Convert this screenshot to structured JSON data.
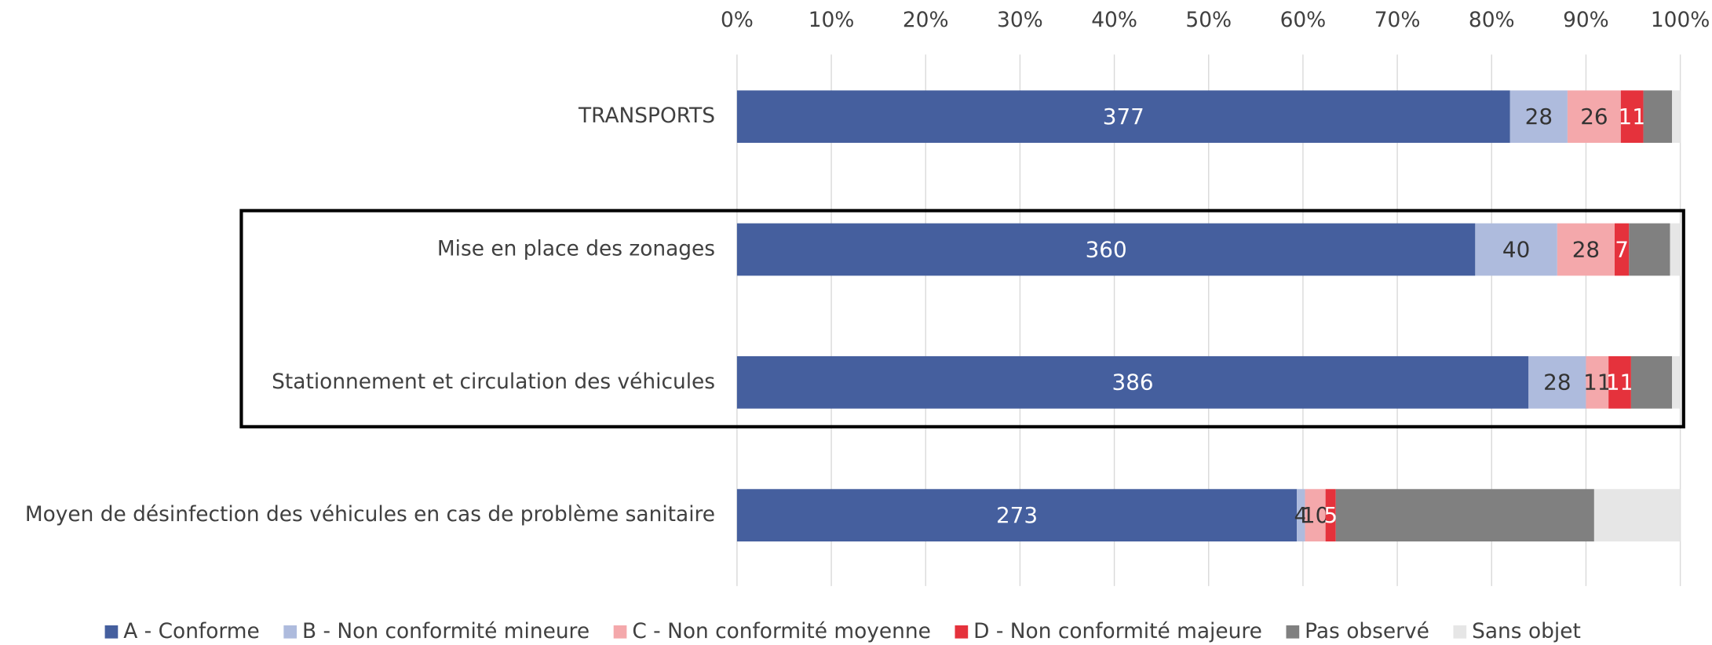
{
  "chart_data": {
    "type": "bar",
    "orientation": "horizontal",
    "stacking": "percent",
    "categories": [
      "TRANSPORTS",
      "Mise en place des zonages",
      "Stationnement et circulation des véhicules",
      "Moyen de désinfection des véhicules en cas de problème sanitaire"
    ],
    "series": [
      {
        "name": "A - Conforme",
        "color": "#455f9e",
        "label_color": "#ffffff",
        "show_labels": true,
        "values": [
          377,
          360,
          386,
          273
        ]
      },
      {
        "name": "B - Non conformité mineure",
        "color": "#aebbdd",
        "label_color": "#333333",
        "show_labels": true,
        "values": [
          28,
          40,
          28,
          4
        ]
      },
      {
        "name": "C - Non conformité moyenne",
        "color": "#f4a8ab",
        "label_color": "#333333",
        "show_labels": true,
        "values": [
          26,
          28,
          11,
          10
        ]
      },
      {
        "name": "D - Non conformité majeure",
        "color": "#e5323c",
        "label_color": "#ffffff",
        "show_labels": true,
        "values": [
          11,
          7,
          11,
          5
        ]
      },
      {
        "name": "Pas observé",
        "color": "#808080",
        "label_color": "#ffffff",
        "show_labels": false,
        "values": [
          14,
          20,
          20,
          126
        ]
      },
      {
        "name": "Sans objet",
        "color": "#e6e6e6",
        "label_color": "#333333",
        "show_labels": false,
        "values": [
          4,
          5,
          4,
          42
        ]
      }
    ],
    "xlim": [
      0,
      100
    ],
    "xticks": [
      {
        "value": 0,
        "label": "0%"
      },
      {
        "value": 10,
        "label": "10%"
      },
      {
        "value": 20,
        "label": "20%"
      },
      {
        "value": 30,
        "label": "30%"
      },
      {
        "value": 40,
        "label": "40%"
      },
      {
        "value": 50,
        "label": "50%"
      },
      {
        "value": 60,
        "label": "60%"
      },
      {
        "value": 70,
        "label": "70%"
      },
      {
        "value": 80,
        "label": "80%"
      },
      {
        "value": 90,
        "label": "90%"
      },
      {
        "value": 100,
        "label": "100%"
      }
    ],
    "grid": true,
    "legend": "bottom"
  }
}
